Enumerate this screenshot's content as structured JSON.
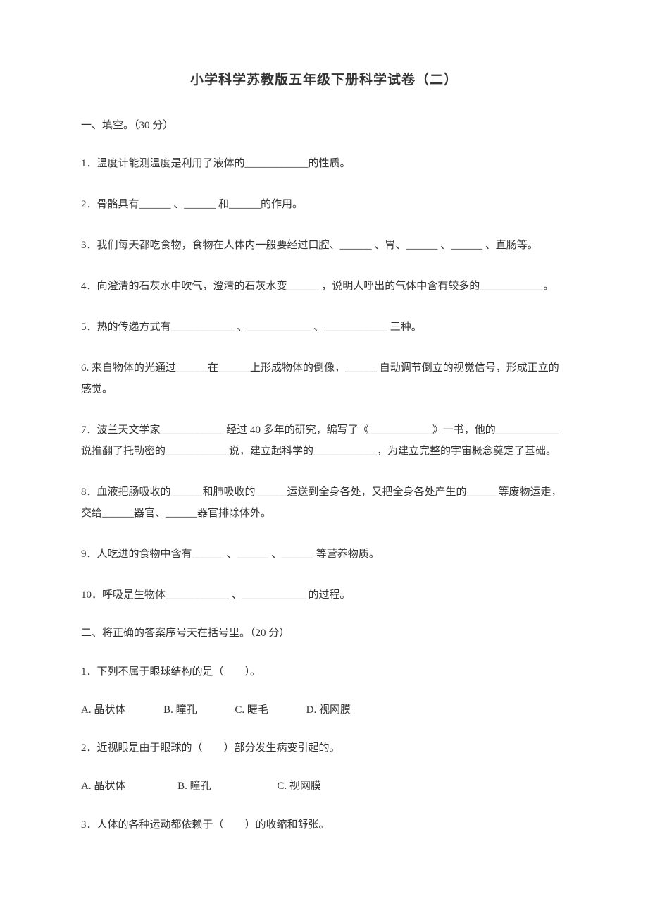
{
  "title": "小学科学苏教版五年级下册科学试卷（二）",
  "section1": {
    "header": "一、填空。（30 分）",
    "q1": "1．温度计能测温度是利用了液体的____________的性质。",
    "q2": "2．骨骼具有______ 、______ 和______的作用。",
    "q3": "3．我们每天都吃食物，食物在人体内一般要经过口腔、______ 、胃、______ 、______ 、直肠等。",
    "q4": "4．向澄清的石灰水中吹气，澄清的石灰水变______ ，说明人呼出的气体中含有较多的____________。",
    "q5": "5．热的传递方式有____________ 、____________ 、____________ 三种。",
    "q6": "6. 来自物体的光通过______在______上形成物体的倒像，______ 自动调节倒立的视觉信号，形成正立的感觉。",
    "q7": "7．波兰天文学家____________ 经过 40 多年的研究，编写了《____________》一书，他的____________说推翻了托勒密的____________说，建立起科学的____________，为建立完整的宇宙概念奠定了基础。",
    "q8": "8．血液把肠吸收的______和肺吸收的______运送到全身各处，又把全身各处产生的______等废物运走，交给______器官、______器官排除体外。",
    "q9": "9．人吃进的食物中含有______ 、______ 、______ 等营养物质。",
    "q10": "10．呼吸是生物体____________ 、____________ 的过程。"
  },
  "section2": {
    "header": "二、将正确的答案序号天在括号里。（20 分）",
    "q1": {
      "text": "1．下列不属于眼球结构的是（　　）。",
      "opts": {
        "a": "A. 晶状体",
        "b": "B. 瞳孔",
        "c": "C. 睫毛",
        "d": "D. 视网膜"
      }
    },
    "q2": {
      "text": "2．近视眼是由于眼球的（　　）部分发生病变引起的。",
      "opts": {
        "a": "A. 晶状体",
        "b": "B. 瞳孔",
        "c": "C. 视网膜"
      }
    },
    "q3": {
      "text": "3．人体的各种运动都依赖于（　　）的收缩和舒张。"
    }
  },
  "colors": {
    "background": "#ffffff",
    "text": "#333333"
  },
  "typography": {
    "base_font_size": 15,
    "title_font_size": 19,
    "font_family": "SimSun"
  }
}
